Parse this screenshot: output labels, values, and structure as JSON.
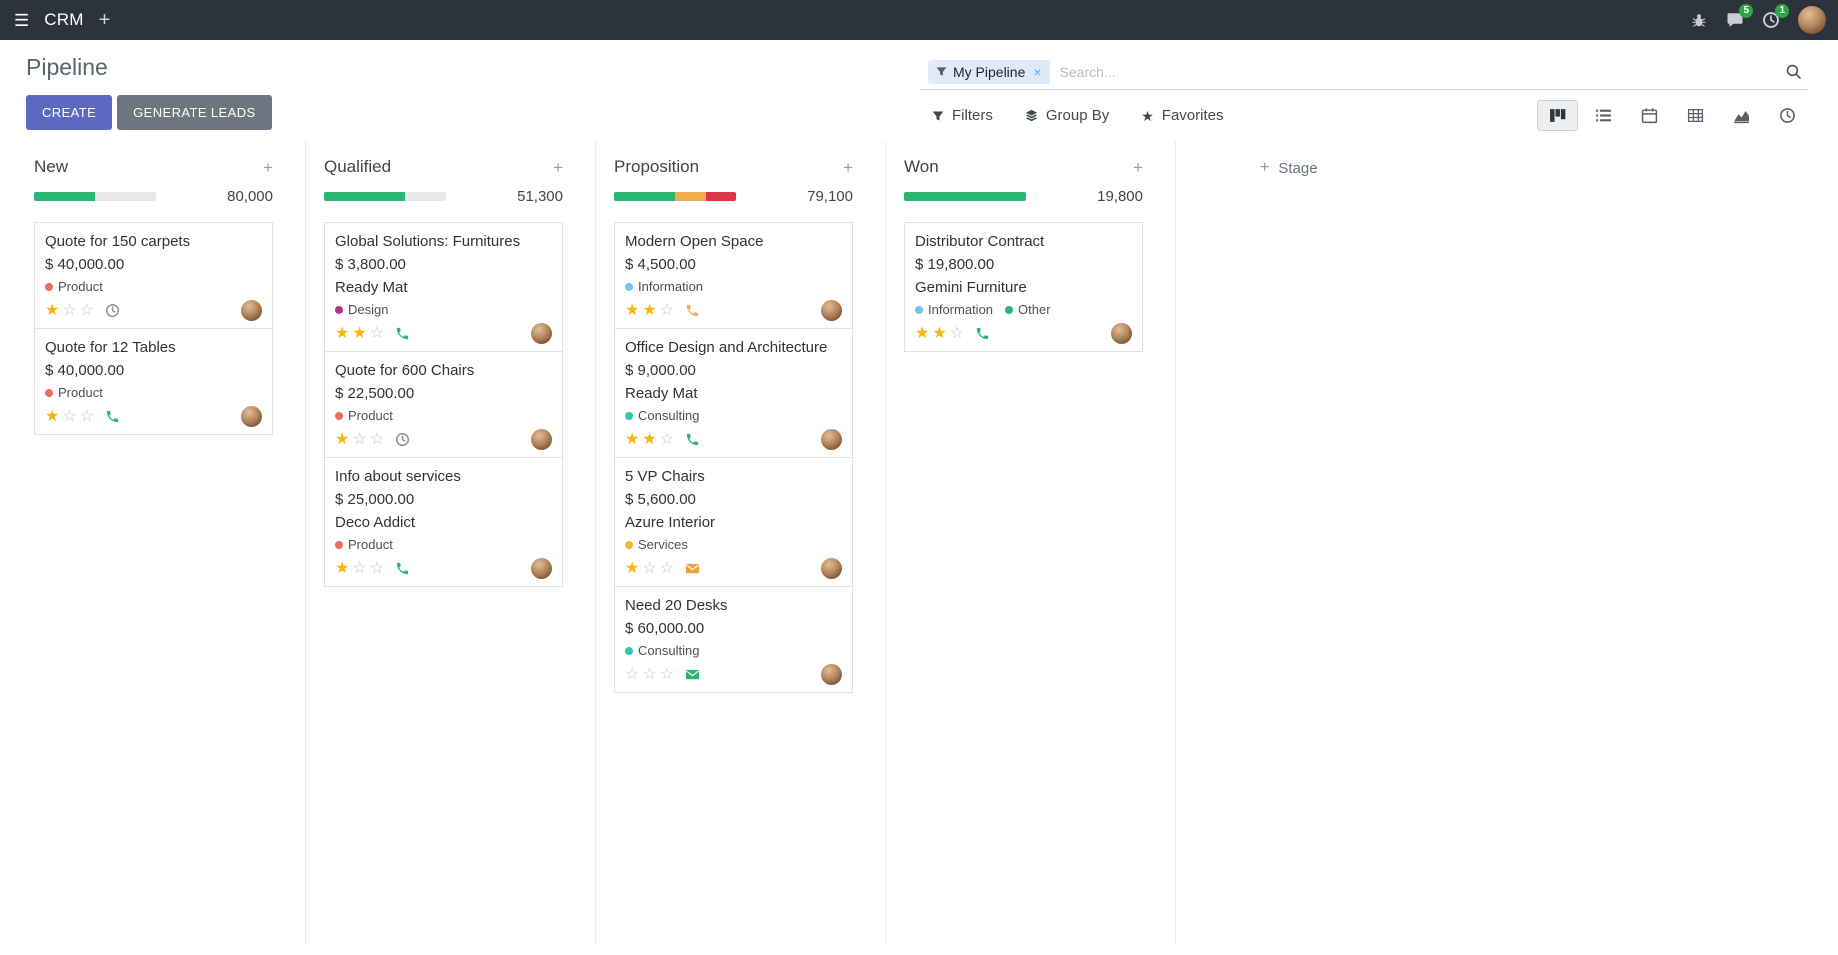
{
  "icons": {
    "menu": "☰",
    "plus": "+",
    "facet_remove": "×",
    "favorites_star": "★",
    "column_add": "+",
    "stage_add": "+"
  },
  "topbar": {
    "app_name": "CRM",
    "messages_badge": "5",
    "activities_badge": "1"
  },
  "control_panel": {
    "title": "Pipeline",
    "create_label": "CREATE",
    "generate_leads_label": "GENERATE LEADS",
    "search_facet": "My Pipeline",
    "search_placeholder": "Search...",
    "filters_label": "Filters",
    "group_by_label": "Group By",
    "favorites_label": "Favorites",
    "view_switcher": [
      "kanban",
      "list",
      "calendar",
      "pivot",
      "graph",
      "activity"
    ]
  },
  "board": {
    "add_stage_label": "Stage",
    "columns": [
      {
        "name": "New",
        "total": "80,000",
        "progress": [
          {
            "color": "#2ab672",
            "pct": 50
          }
        ],
        "cards": [
          {
            "title": "Quote for 150 carpets",
            "amount": "$ 40,000.00",
            "partner": "",
            "tags": [
              {
                "label": "Product",
                "color": "#ec6a5e"
              }
            ],
            "stars": 1,
            "activity": {
              "type": "clock",
              "icon": "clock-activity-icon",
              "color": "#8d9194"
            }
          },
          {
            "title": "Quote for 12 Tables",
            "amount": "$ 40,000.00",
            "partner": "",
            "tags": [
              {
                "label": "Product",
                "color": "#ec6a5e"
              }
            ],
            "stars": 1,
            "activity": {
              "type": "phone",
              "icon": "phone-activity-icon",
              "color": "#2ab672"
            }
          }
        ]
      },
      {
        "name": "Qualified",
        "total": "51,300",
        "progress": [
          {
            "color": "#2ab672",
            "pct": 66
          }
        ],
        "cards": [
          {
            "title": "Global Solutions: Furnitures",
            "amount": "$ 3,800.00",
            "partner": "Ready Mat",
            "tags": [
              {
                "label": "Design",
                "color": "#b0368f"
              }
            ],
            "stars": 2,
            "activity": {
              "type": "phone",
              "icon": "phone-activity-icon",
              "color": "#2ab672"
            }
          },
          {
            "title": "Quote for 600 Chairs",
            "amount": "$ 22,500.00",
            "partner": "",
            "tags": [
              {
                "label": "Product",
                "color": "#ec6a5e"
              }
            ],
            "stars": 1,
            "activity": {
              "type": "clock",
              "icon": "clock-activity-icon",
              "color": "#8d9194"
            }
          },
          {
            "title": "Info about services",
            "amount": "$ 25,000.00",
            "partner": "Deco Addict",
            "tags": [
              {
                "label": "Product",
                "color": "#ec6a5e"
              }
            ],
            "stars": 1,
            "activity": {
              "type": "phone",
              "icon": "phone-activity-icon",
              "color": "#2ab672"
            }
          }
        ]
      },
      {
        "name": "Proposition",
        "total": "79,100",
        "progress": [
          {
            "color": "#2ab672",
            "pct": 50
          },
          {
            "color": "#f0ad4e",
            "pct": 25
          },
          {
            "color": "#dc3545",
            "pct": 25
          }
        ],
        "cards": [
          {
            "title": "Modern Open Space",
            "amount": "$ 4,500.00",
            "partner": "",
            "tags": [
              {
                "label": "Information",
                "color": "#6fc6f5"
              }
            ],
            "stars": 2,
            "activity": {
              "type": "phone",
              "icon": "phone-activity-icon",
              "color": "#f0ad4e"
            }
          },
          {
            "title": "Office Design and Architecture",
            "amount": "$ 9,000.00",
            "partner": "Ready Mat",
            "tags": [
              {
                "label": "Consulting",
                "color": "#32c5b5"
              }
            ],
            "stars": 2,
            "activity": {
              "type": "phone",
              "icon": "phone-activity-icon",
              "color": "#2ab672"
            }
          },
          {
            "title": "5 VP Chairs",
            "amount": "$ 5,600.00",
            "partner": "Azure Interior",
            "tags": [
              {
                "label": "Services",
                "color": "#f2b43c"
              }
            ],
            "stars": 1,
            "activity": {
              "type": "mail",
              "icon": "envelope-activity-icon",
              "color": "#e9a33c"
            }
          },
          {
            "title": "Need 20 Desks",
            "amount": "$ 60,000.00",
            "partner": "",
            "tags": [
              {
                "label": "Consulting",
                "color": "#32c5b5"
              }
            ],
            "stars": 0,
            "activity": {
              "type": "mail",
              "icon": "envelope-activity-icon",
              "color": "#2ab672"
            }
          }
        ]
      },
      {
        "name": "Won",
        "total": "19,800",
        "progress": [
          {
            "color": "#2ab672",
            "pct": 100
          }
        ],
        "cards": [
          {
            "title": "Distributor Contract",
            "amount": "$ 19,800.00",
            "partner": "Gemini Furniture",
            "tags": [
              {
                "label": "Information",
                "color": "#6fc6f5"
              },
              {
                "label": "Other",
                "color": "#2ab672"
              }
            ],
            "stars": 2,
            "activity": {
              "type": "phone",
              "icon": "phone-activity-icon",
              "color": "#2ab672"
            }
          }
        ]
      }
    ]
  }
}
